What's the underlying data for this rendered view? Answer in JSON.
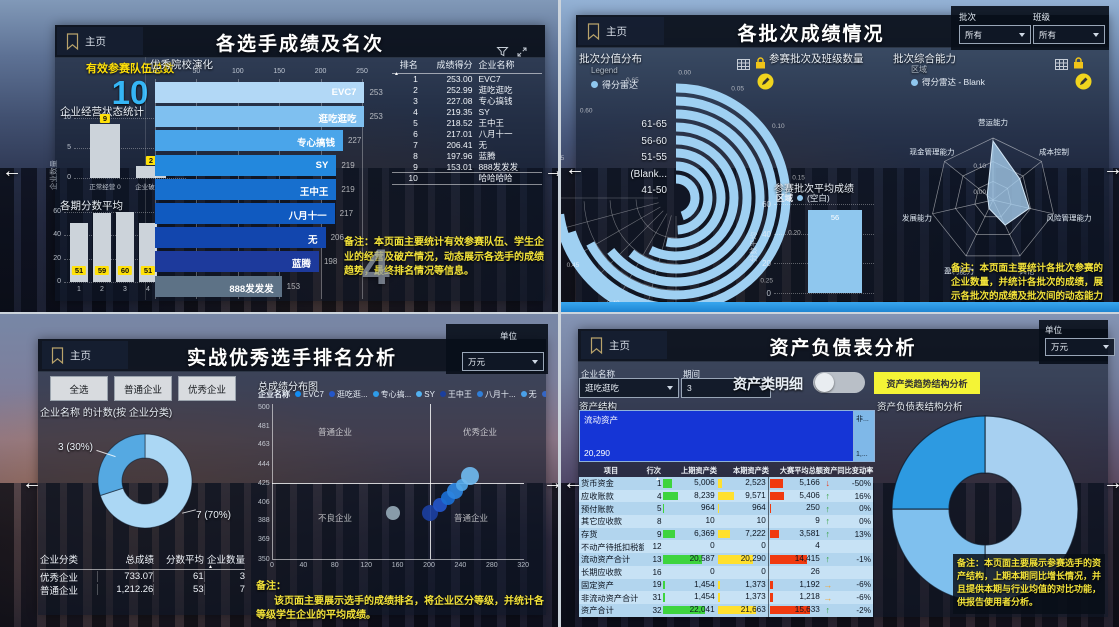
{
  "icons": {
    "nav_left": "←",
    "nav_right": "→",
    "sort_asc": "▲",
    "trend_up": "↑",
    "trend_down": "↓",
    "trend_flat": "→",
    "more_arrow": "▶"
  },
  "p1": {
    "home": "主页",
    "title": "各选手成绩及名次",
    "watermark": "4",
    "kpi": {
      "label": "有效参赛队伍总数",
      "value": "10"
    },
    "ops": {
      "title": "企业经营状态统计",
      "ylabel": "企业数量",
      "ymax": 10,
      "yticks": [
        "10",
        "5",
        "0"
      ],
      "categories": [
        "正常经营 0",
        "企业破产 0"
      ],
      "values": [
        9,
        2
      ]
    },
    "avg": {
      "title": "各期分数平均",
      "ymax": 60,
      "yticks": [
        "60",
        "40",
        "20",
        "0"
      ],
      "categories": [
        "1",
        "2",
        "3",
        "4"
      ],
      "values": [
        51,
        59,
        60,
        51
      ]
    },
    "hbar": {
      "title": "优秀院校演化",
      "xmax": 250,
      "xticks": [
        "0",
        "50",
        "100",
        "150",
        "200",
        "250"
      ],
      "names": [
        "EVC7",
        "逛吃逛吃",
        "专心搞钱",
        "SY",
        "王中王",
        "八月十一",
        "无",
        "蓝腾",
        "888发发发"
      ],
      "values": [
        253,
        253,
        227,
        219,
        219,
        217,
        206,
        198,
        153
      ],
      "colors": [
        "#b2d8f6",
        "#7fc0f0",
        "#4aa5ea",
        "#2388dd",
        "#176fce",
        "#105ac0",
        "#1246ae",
        "#1d3a9c",
        "#5d7286"
      ]
    },
    "rank": {
      "headers": [
        "排名",
        "成绩得分",
        "企业名称"
      ],
      "rows": [
        [
          "1",
          "253.00",
          "EVC7"
        ],
        [
          "2",
          "252.99",
          "逛吃逛吃"
        ],
        [
          "3",
          "227.08",
          "专心搞钱"
        ],
        [
          "4",
          "219.35",
          "SY"
        ],
        [
          "5",
          "218.52",
          "王中王"
        ],
        [
          "6",
          "217.01",
          "八月十一"
        ],
        [
          "7",
          "206.41",
          "无"
        ],
        [
          "8",
          "197.96",
          "蓝腾"
        ],
        [
          "9",
          "153.01",
          "888发发发"
        ],
        [
          "10",
          "",
          "哈哈哈哈"
        ]
      ]
    },
    "note": "备注：本页面主要统计有效参赛队伍、学生企业的经营及破产情况，动态展示各选手的成绩趋势，最终排名情况等信息。"
  },
  "p2": {
    "home": "主页",
    "title": "各批次成绩情况",
    "filters": [
      {
        "label": "批次",
        "value": "所有"
      },
      {
        "label": "班级",
        "value": "所有"
      }
    ],
    "radial": {
      "title": "批次分值分布",
      "legend_title": "Legend",
      "legend_item": "得分雷达",
      "categories": [
        "61-65",
        "56-60",
        "51-55",
        "(Blank...",
        "41-50"
      ],
      "ticks": [
        "0.00",
        "0.05",
        "0.10",
        "0.15",
        "0.20",
        "0.25",
        "0.30",
        "0.35",
        "0.40",
        "0.45",
        "0.50",
        "0.55",
        "0.60",
        "0.65"
      ],
      "sweeps": [
        252,
        242,
        231,
        219,
        206,
        192,
        177,
        161
      ],
      "tail": {
        "start": 196,
        "end": 262
      },
      "color": "#9fd0f2"
    },
    "count": {
      "title": "参赛批次及班级数量"
    },
    "radar": {
      "title": "批次综合能力",
      "legend_title": "区域",
      "legend_item": "得分雷达 - Blank",
      "axes": [
        "营运能力",
        "成本控制",
        "风险管理能力",
        "其他",
        "盈利能力",
        "发展能力",
        "现金管理能力"
      ],
      "values": [
        0.95,
        0.55,
        0.6,
        0.45,
        0.15,
        0.08,
        0.12
      ],
      "ticks": [
        "0.10",
        "0.00"
      ],
      "color": "#a9cfee"
    },
    "avgbar": {
      "title": "参赛批次平均成绩",
      "legend_title": "区域",
      "legend_item": "(空白)",
      "ylabel": "分数平均",
      "ymax": 60,
      "yticks": [
        "60",
        "40",
        "20",
        "0"
      ],
      "value": 56,
      "color": "#8fc7ee"
    },
    "note": "备注：本页面主要统计各批次参赛的企业数量，并统计各批次的成绩，展示各批次的成绩及批次间的动态能力雷达图。"
  },
  "p3": {
    "home": "主页",
    "title": "实战优秀选手排名分析",
    "unit": {
      "label": "单位",
      "value": "万元"
    },
    "buttons": [
      "全选",
      "普通企业",
      "优秀企业"
    ],
    "donut": {
      "title": "企业名称 的计数(按 企业分类)",
      "segments": [
        {
          "label": "7 (70%)",
          "pct": 70,
          "color": "#abd7f4"
        },
        {
          "label": "3 (30%)",
          "pct": 30,
          "color": "#55a9e2"
        }
      ],
      "label_left": "3 (30%)",
      "label_right": "7 (70%)"
    },
    "scatter": {
      "title": "总成绩分布图",
      "legend_title": "企业名称",
      "legend_items": [
        "EVC7",
        "逛吃逛...",
        "专心搞...",
        "SY",
        "王中王",
        "八月十...",
        "无",
        "蓝腾"
      ],
      "legend_colors": [
        "#118df5",
        "#2456c9",
        "#2e9be8",
        "#53b1f0",
        "#1b3f9e",
        "#2f7ed8",
        "#4aa0e8",
        "#3566c4"
      ],
      "yticks": [
        500,
        481,
        463,
        444,
        425,
        406,
        388,
        369,
        350
      ],
      "xticks": [
        0,
        40,
        80,
        120,
        160,
        200,
        240,
        280,
        320
      ],
      "quadrants": [
        "普通企业",
        "优秀企业",
        "不良企业",
        "普通企业"
      ],
      "points": [
        {
          "x": 154,
          "y": 395,
          "r": 7,
          "c": "#93a7b4"
        },
        {
          "x": 201,
          "y": 395,
          "r": 8,
          "c": "#1b3f9e"
        },
        {
          "x": 214,
          "y": 403,
          "r": 7,
          "c": "#2456c9"
        },
        {
          "x": 224,
          "y": 410,
          "r": 7,
          "c": "#1b6fd4"
        },
        {
          "x": 233,
          "y": 417,
          "r": 8,
          "c": "#2e86e0"
        },
        {
          "x": 242,
          "y": 423,
          "r": 6,
          "c": "#53a8e8"
        },
        {
          "x": 252,
          "y": 432,
          "r": 9,
          "c": "#6fb9ee"
        }
      ]
    },
    "table": {
      "headers": [
        "企业分类",
        "总成绩",
        "分数平均",
        "企业数量"
      ],
      "rows": [
        [
          "优秀企业",
          "733.07",
          "61",
          "3"
        ],
        [
          "普通企业",
          "1,212.26",
          "53",
          "7"
        ]
      ]
    },
    "note_head": "备注：",
    "note": "该页面主要展示选手的成绩排名，将企业区分等级，并统计各等级学生企业的平均成绩。"
  },
  "p4": {
    "home": "主页",
    "title": "资产负债表分析",
    "unit": {
      "label": "单位",
      "value": "万元"
    },
    "filters": [
      {
        "label": "企业名称",
        "value": "逛吃逛吃"
      },
      {
        "label": "期间",
        "value": "3"
      }
    ],
    "toggle_label": "资产类明细",
    "button": "资产类趋势结构分析",
    "treemap": {
      "title": "资产结构",
      "big_label": "流动资产",
      "big_value": "20,290",
      "small_label": "非...",
      "small_value": "1,...",
      "big_color": "#1535d6",
      "small_color": "#7fb8e8"
    },
    "bs": {
      "headers": [
        "项目",
        "行次",
        "上期资产类",
        "本期资产类",
        "大赛平均总额",
        "资产同比变动率"
      ],
      "bar_colors": {
        "prev": "#3ed43e",
        "cur": "#ffe02e",
        "avg": "#f03a10"
      },
      "rows": [
        [
          "货币资金",
          "1",
          "5,006",
          "2,523",
          "5,166",
          "down",
          "-50%"
        ],
        [
          "应收账款",
          "4",
          "8,239",
          "9,571",
          "5,406",
          "up",
          "16%"
        ],
        [
          "预付账款",
          "5",
          "964",
          "964",
          "250",
          "up",
          "0%"
        ],
        [
          "其它应收款",
          "8",
          "10",
          "10",
          "9",
          "up",
          "0%"
        ],
        [
          "存货",
          "9",
          "6,369",
          "7,222",
          "3,581",
          "up",
          "13%"
        ],
        [
          "不动产待抵扣税额",
          "12",
          "0",
          "0",
          "4",
          "",
          ""
        ],
        [
          "流动资产合计",
          "13",
          "20,587",
          "20,290",
          "14,415",
          "up",
          "-1%"
        ],
        [
          "长期应收款",
          "16",
          "0",
          "0",
          "26",
          "",
          ""
        ],
        [
          "固定资产",
          "19",
          "1,454",
          "1,373",
          "1,192",
          "right",
          "-6%"
        ],
        [
          "非流动资产合计",
          "31",
          "1,454",
          "1,373",
          "1,218",
          "right",
          "-6%"
        ],
        [
          "资产合计",
          "32",
          "22,041",
          "21,663",
          "15,633",
          "up",
          "-2%"
        ]
      ]
    },
    "donut": {
      "title": "资产负债表结构分析",
      "segments": [
        {
          "pct": 50,
          "color": "#a7d0f1"
        },
        {
          "pct": 25,
          "color": "#7fc0ee"
        },
        {
          "pct": 25,
          "color": "#2d9ae1"
        }
      ]
    },
    "note": "备注：本页面主要展示参赛选手的资产结构，上期本期同比增长情况，并且提供本期与行业均值的对比功能，供报告使用者分析。"
  }
}
